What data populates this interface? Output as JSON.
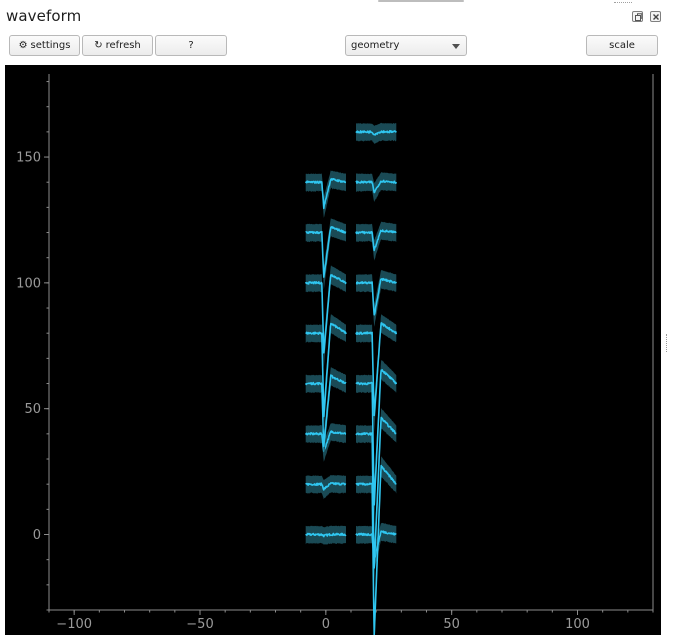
{
  "window": {
    "title": "waveform",
    "controls": [
      {
        "name": "float-button",
        "icon": "restore-icon"
      },
      {
        "name": "close-button",
        "icon": "close-icon"
      }
    ]
  },
  "toolbar": {
    "settings_label": "settings",
    "settings_icon": "⚙",
    "refresh_label": "refresh",
    "refresh_icon": "↻",
    "help_label": "?",
    "view_select_value": "geometry",
    "scale_label": "scale"
  },
  "plot": {
    "background": "#000000",
    "axis_color": "#8c8c8c",
    "trace_color": "#2fc6f0",
    "band_color": "#1b4e5a"
  },
  "chart_data": {
    "type": "line",
    "title": "",
    "xlabel": "",
    "ylabel": "",
    "xlim": [
      -110,
      130
    ],
    "ylim": [
      -30,
      183
    ],
    "xticks": [
      -100,
      -50,
      0,
      50,
      100
    ],
    "yticks": [
      0,
      50,
      100,
      150
    ],
    "xtick_labels": [
      "−100",
      "−50",
      "0",
      "50",
      "100"
    ],
    "ytick_labels": [
      "0",
      "50",
      "100",
      "150"
    ],
    "channels": [
      {
        "x": 0,
        "y": 0,
        "trough": -0.5
      },
      {
        "x": 0,
        "y": 20,
        "trough": -2
      },
      {
        "x": 0,
        "y": 40,
        "trough": -7
      },
      {
        "x": 0,
        "y": 60,
        "trough": -25
      },
      {
        "x": 0,
        "y": 80,
        "trough": -33
      },
      {
        "x": 0,
        "y": 100,
        "trough": -28
      },
      {
        "x": 0,
        "y": 120,
        "trough": -18
      },
      {
        "x": 0,
        "y": 140,
        "trough": -10
      },
      {
        "x": 20,
        "y": 0,
        "trough": -10
      },
      {
        "x": 20,
        "y": 20,
        "trough": -60
      },
      {
        "x": 20,
        "y": 40,
        "trough": -53
      },
      {
        "x": 20,
        "y": 60,
        "trough": -48
      },
      {
        "x": 20,
        "y": 80,
        "trough": -33
      },
      {
        "x": 20,
        "y": 100,
        "trough": -13
      },
      {
        "x": 20,
        "y": 120,
        "trough": -7
      },
      {
        "x": 20,
        "y": 140,
        "trough": -4
      },
      {
        "x": 20,
        "y": 160,
        "trough": -1
      }
    ]
  }
}
